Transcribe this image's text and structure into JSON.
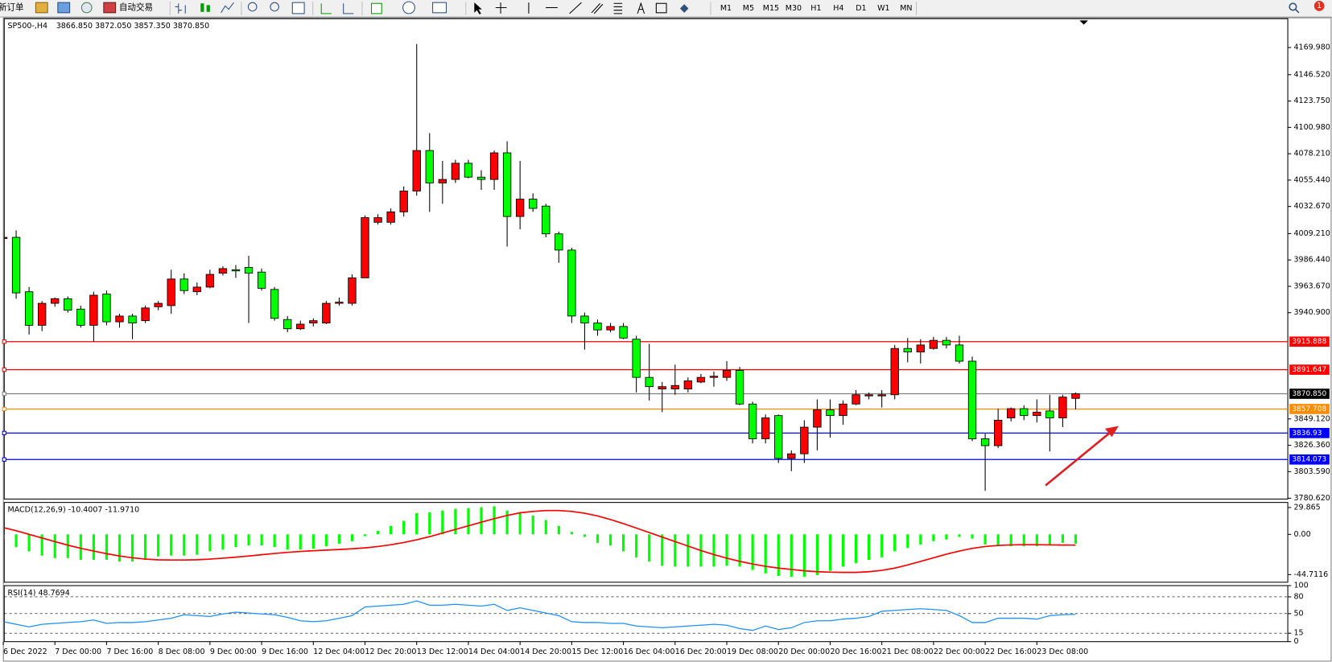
{
  "toolbar": {
    "new_order": "新订单",
    "auto_trading": "自动交易",
    "timeframes": [
      "M1",
      "M5",
      "M15",
      "M30",
      "H1",
      "H4",
      "D1",
      "W1",
      "MN"
    ],
    "notifications": 1
  },
  "chart_data": [
    {
      "type": "candlestick",
      "title": "SP500-,H4",
      "subtitle": "3866.850 3872.050 3857.350 3870.850",
      "up_color": "#ff0000",
      "down_color": "#00ff00",
      "categories": [
        "6 Dec 2022",
        null,
        null,
        null,
        "7 Dec 00:00",
        null,
        null,
        null,
        "7 Dec 16:00",
        null,
        null,
        null,
        "8 Dec 08:00",
        null,
        null,
        null,
        "9 Dec 00:00",
        null,
        null,
        null,
        "9 Dec 16:00",
        null,
        null,
        null,
        "12 Dec 04:00",
        null,
        null,
        null,
        "12 Dec 20:00",
        null,
        null,
        null,
        "13 Dec 12:00",
        null,
        null,
        null,
        "14 Dec 04:00",
        null,
        null,
        null,
        "14 Dec 20:00",
        null,
        null,
        null,
        "15 Dec 12:00",
        null,
        null,
        null,
        "16 Dec 04:00",
        null,
        null,
        null,
        "16 Dec 20:00",
        null,
        null,
        null,
        "19 Dec 08:00",
        null,
        null,
        null,
        "20 Dec 00:00",
        null,
        null,
        null,
        "20 Dec 16:00",
        null,
        null,
        null,
        "21 Dec 08:00",
        null,
        null,
        null,
        "22 Dec 00:00",
        null,
        null,
        null,
        "22 Dec 16:00",
        null,
        null,
        null,
        "23 Dec 08:00",
        null,
        null,
        null
      ],
      "open": [
        4005,
        4006,
        3959,
        3930,
        3949,
        3953,
        3944,
        3930,
        3957,
        3933,
        3938,
        3934,
        3946,
        3947,
        3970,
        3959,
        3963,
        3975,
        3978,
        3980,
        3976,
        3961,
        3935,
        3927,
        3932,
        3932,
        3949,
        3949,
        3971,
        4019,
        4019,
        4028,
        4046,
        4081,
        4053,
        4056,
        4070,
        4058,
        4056,
        4079,
        4024,
        4039,
        4033,
        4009,
        3995,
        3938,
        3932,
        3926,
        3929,
        3918,
        3885,
        3875,
        3875,
        3875,
        3881,
        3885,
        3885,
        3891,
        3862,
        3832,
        3852,
        3815,
        3819,
        3842,
        3857,
        3852,
        3862,
        3869,
        3869,
        3870,
        3910,
        3907,
        3910,
        3917,
        3913,
        3899,
        3832,
        3826,
        3850,
        3858,
        3852,
        3856,
        3850,
        3866.85
      ],
      "high": [
        4013,
        4012,
        3963,
        3951,
        3954,
        3955,
        3947,
        3959,
        3960,
        3940,
        3940,
        3947,
        3951,
        3978,
        3975,
        3967,
        3978,
        3981,
        3982,
        3990,
        3979,
        3963,
        3938,
        3934,
        3936,
        3951,
        3954,
        3974,
        4025,
        4026,
        4031,
        4050,
        4173,
        4096,
        4072,
        4073,
        4073,
        4064,
        4081,
        4089,
        4072,
        4044,
        4035,
        4011,
        3997,
        3941,
        3935,
        3932,
        3932,
        3921,
        3914,
        3881,
        3896,
        3885,
        3888,
        3890,
        3899,
        3894,
        3864,
        3853,
        3853,
        3822,
        3848,
        3866,
        3866,
        3865,
        3874,
        3872,
        3874,
        3913,
        3919,
        3918,
        3920,
        3920,
        3921,
        3903,
        3837,
        3858,
        3859,
        3861,
        3866,
        3870,
        3870,
        3872.05
      ],
      "low": [
        4000,
        3953,
        3922,
        3925,
        3946,
        3941,
        3928,
        3916,
        3930,
        3928,
        3918,
        3932,
        3943,
        3940,
        3957,
        3956,
        3962,
        3973,
        3971,
        3932,
        3960,
        3934,
        3924,
        3926,
        3929,
        3931,
        3947,
        3947,
        3971,
        4017,
        4017,
        4024,
        4042,
        4028,
        4035,
        4053,
        4057,
        4047,
        4047,
        3998,
        4013,
        4028,
        4006,
        3984,
        3932,
        3909,
        3921,
        3924,
        3918,
        3872,
        3865,
        3855,
        3870,
        3872,
        3880,
        3877,
        3882,
        3861,
        3828,
        3828,
        3811,
        3804,
        3811,
        3822,
        3833,
        3844,
        3861,
        3866,
        3859,
        3866,
        3898,
        3897,
        3909,
        3910,
        3897,
        3830,
        3787,
        3824,
        3847,
        3848,
        3846,
        3821,
        3842,
        3857.35
      ],
      "close": [
        4006,
        3958,
        3930,
        3949,
        3953,
        3943,
        3930,
        3956,
        3933,
        3938,
        3932,
        3945,
        3949,
        3970,
        3960,
        3963,
        3974,
        3979,
        3977,
        3975,
        3962,
        3936,
        3927,
        3931,
        3934,
        3949,
        3950,
        3971,
        4023,
        4023,
        4028,
        4046,
        4081,
        4053,
        4056,
        4070,
        4058,
        4056,
        4079,
        4024,
        4039,
        4031,
        4009,
        3995,
        3938,
        3932,
        3926,
        3929,
        3919,
        3885,
        3877,
        3877,
        3878,
        3882,
        3885,
        3886,
        3891,
        3862,
        3832,
        3850,
        3815,
        3819,
        3842,
        3857,
        3852,
        3862,
        3870,
        3870,
        3870,
        3910,
        3907,
        3913,
        3917,
        3913,
        3899,
        3832,
        3826,
        3848,
        3858,
        3852,
        3855,
        3850,
        3868,
        3870.85
      ],
      "ylim": [
        3779.9,
        4194.9
      ],
      "yticks": [
        {
          "value": 4169.98,
          "label": "4169.980"
        },
        {
          "value": 4146.52,
          "label": "4146.520"
        },
        {
          "value": 4123.75,
          "label": "4123.750"
        },
        {
          "value": 4100.98,
          "label": "4100.980"
        },
        {
          "value": 4078.21,
          "label": "4078.210"
        },
        {
          "value": 4055.44,
          "label": "4055.440"
        },
        {
          "value": 4032.67,
          "label": "4032.670"
        },
        {
          "value": 4009.21,
          "label": "4009.210"
        },
        {
          "value": 3986.44,
          "label": "3986.440"
        },
        {
          "value": 3963.67,
          "label": "3963.670"
        },
        {
          "value": 3940.9,
          "label": "3940.900"
        },
        {
          "value": 3849.12,
          "label": "3849.120"
        },
        {
          "value": 3826.36,
          "label": "3826.360"
        },
        {
          "value": 3803.59,
          "label": "3803.590"
        },
        {
          "value": 3780.62,
          "label": "3780.620"
        }
      ],
      "levels": [
        {
          "value": 3915.888,
          "color": "#ff0000"
        },
        {
          "value": 3891.647,
          "color": "#ff0000"
        },
        {
          "value": 3870.85,
          "label": "3870.850",
          "color": "#808080"
        },
        {
          "value": 3857.708,
          "color": "#ff8c00"
        },
        {
          "value": 3836.93,
          "color": "#0000ff"
        },
        {
          "value": 3814.073,
          "color": "#0000ff"
        }
      ]
    },
    {
      "type": "macd",
      "title": "MACD(12,26,9) -10.4007 -11.9710",
      "color": "#00ff00",
      "signal_color": "#ff0000",
      "values": [
        -5.7,
        -14.2,
        -18.9,
        -23.6,
        -26.4,
        -26.4,
        -28.3,
        -28.3,
        -28.3,
        -30.2,
        -30.2,
        -28.3,
        -24.5,
        -23.6,
        -23.6,
        -22.7,
        -18.9,
        -17.0,
        -14.2,
        -12.3,
        -12.3,
        -14.2,
        -17.0,
        -17.0,
        -16.0,
        -13.2,
        -10.4,
        -7.6,
        -1.9,
        3.8,
        9.4,
        15.1,
        23.6,
        24.5,
        26.4,
        28.3,
        29.3,
        30.2,
        31.2,
        26.4,
        24.5,
        20.8,
        16.0,
        9.4,
        2.8,
        -2.8,
        -9.4,
        -12.3,
        -18.9,
        -25.5,
        -30.2,
        -34.9,
        -35.9,
        -35.9,
        -35.9,
        -35.9,
        -34.9,
        -35.9,
        -39.6,
        -43.4,
        -46.2,
        -47.2,
        -47.2,
        -45.3,
        -40.6,
        -35.9,
        -32.1,
        -28.3,
        -25.5,
        -18.9,
        -15.1,
        -11.3,
        -7.6,
        -5.7,
        -2.8,
        -4.7,
        -11.3,
        -12.3,
        -13.2,
        -13.2,
        -13.2,
        -12.3,
        -9.4,
        -10.4007
      ],
      "signal": [
        7.6,
        4,
        0,
        -4,
        -8,
        -12,
        -15.5,
        -18.5,
        -21.5,
        -24,
        -26,
        -27.5,
        -28.3,
        -28.5,
        -28.5,
        -28.2,
        -27.5,
        -26.5,
        -25.3,
        -24,
        -22.6,
        -21.2,
        -20,
        -19,
        -18.2,
        -17.5,
        -16.8,
        -16,
        -15,
        -13.5,
        -11.5,
        -9,
        -6,
        -2.5,
        1.5,
        5.5,
        9.5,
        13.5,
        17.5,
        21,
        24,
        25.5,
        26.5,
        26.5,
        25.5,
        23.5,
        20.5,
        16.5,
        12,
        7,
        2,
        -3,
        -8,
        -13,
        -18,
        -22.5,
        -26.5,
        -30,
        -33,
        -35.5,
        -37.5,
        -39,
        -40.5,
        -41.5,
        -42,
        -42.3,
        -42.3,
        -41.5,
        -40,
        -37.5,
        -34,
        -30,
        -26,
        -22,
        -18.5,
        -15.5,
        -13.5,
        -12.3,
        -11.7,
        -11.5,
        -11.5,
        -11.7,
        -11.9,
        -11.971
      ],
      "ylim": [
        -53.2,
        35.5
      ],
      "yticks": [
        29.865,
        {
          "value": 0,
          "label": "0.00"
        },
        -44.7116
      ]
    },
    {
      "type": "line",
      "title": "RSI(14) 48.7694",
      "color": "#1e90ff",
      "grid": "dashed",
      "values": [
        35.6,
        31.0,
        26.3,
        31.0,
        32.5,
        34.1,
        35.6,
        38.7,
        32.5,
        34.1,
        34.1,
        35.6,
        38.7,
        41.8,
        48.0,
        46.4,
        44.9,
        49.5,
        52.6,
        51.1,
        49.5,
        48.0,
        43.3,
        37.2,
        35.6,
        37.2,
        41.8,
        46.4,
        61.9,
        63.5,
        65.0,
        66.6,
        72.8,
        65.0,
        65.0,
        66.6,
        65.0,
        63.5,
        66.6,
        55.7,
        60.4,
        55.7,
        51.1,
        46.4,
        35.6,
        34.1,
        34.1,
        32.5,
        32.5,
        27.9,
        26.3,
        24.8,
        26.3,
        27.9,
        29.4,
        31.0,
        29.4,
        23.2,
        20.1,
        27.9,
        21.7,
        24.8,
        34.1,
        37.2,
        37.2,
        40.2,
        41.8,
        44.9,
        54.2,
        55.7,
        57.3,
        58.8,
        57.3,
        55.7,
        46.4,
        34.1,
        34.1,
        41.8,
        41.8,
        41.8,
        40.2,
        46.4,
        48.0,
        48.7694
      ],
      "ylim": [
        0,
        100
      ],
      "yticks": [
        100,
        80,
        50,
        15,
        0
      ]
    }
  ]
}
